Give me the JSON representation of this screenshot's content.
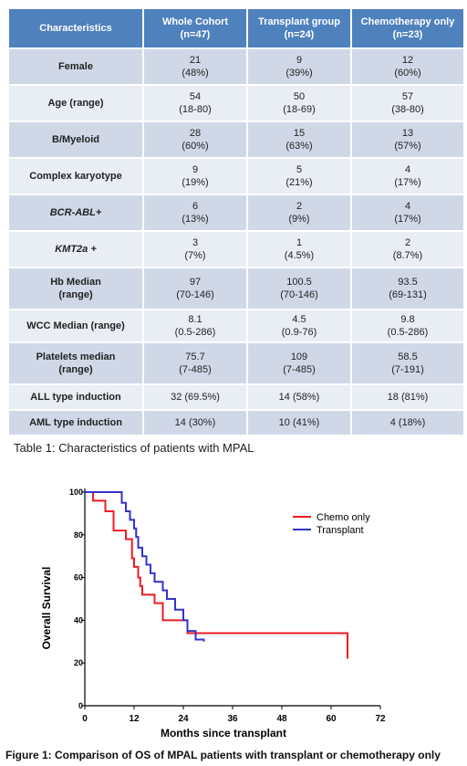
{
  "table": {
    "headers": [
      "Characteristics",
      "Whole Cohort\n(n=47)",
      "Transplant group\n(n=24)",
      "Chemotherapy only\n(n=23)"
    ],
    "rows": [
      {
        "label": "Female",
        "italic": false,
        "cells": [
          [
            "21",
            "(48%)"
          ],
          [
            "9",
            "(39%)"
          ],
          [
            "12",
            "(60%)"
          ]
        ]
      },
      {
        "label": "Age (range)",
        "italic": false,
        "cells": [
          [
            "54",
            "(18-80)"
          ],
          [
            "50",
            "(18-69)"
          ],
          [
            "57",
            "(38-80)"
          ]
        ]
      },
      {
        "label": "B/Myeloid",
        "italic": false,
        "cells": [
          [
            "28",
            "(60%)"
          ],
          [
            "15",
            "(63%)"
          ],
          [
            "13",
            "(57%)"
          ]
        ]
      },
      {
        "label": "Complex karyotype",
        "italic": false,
        "cells": [
          [
            "9",
            "(19%)"
          ],
          [
            "5",
            "(21%)"
          ],
          [
            "4",
            "(17%)"
          ]
        ]
      },
      {
        "label": "BCR-ABL+",
        "italic": true,
        "cells": [
          [
            "6",
            "(13%)"
          ],
          [
            "2",
            "(9%)"
          ],
          [
            "4",
            "(17%)"
          ]
        ]
      },
      {
        "label": "KMT2a +",
        "italic": true,
        "cells": [
          [
            "3",
            "(7%)"
          ],
          [
            "1",
            "(4.5%)"
          ],
          [
            "2",
            "(8.7%)"
          ]
        ]
      },
      {
        "label": "Hb Median\n(range)",
        "italic": false,
        "cells": [
          [
            "97",
            "(70-146)"
          ],
          [
            "100.5",
            "(70-146)"
          ],
          [
            "93.5",
            "(69-131)"
          ]
        ]
      },
      {
        "label": "WCC Median (range)",
        "italic": false,
        "cells": [
          [
            "8.1",
            "(0.5-286)"
          ],
          [
            "4.5",
            "(0.9-76)"
          ],
          [
            "9.8",
            "(0.5-286)"
          ]
        ]
      },
      {
        "label": "Platelets median\n(range)",
        "italic": false,
        "cells": [
          [
            "75.7",
            "(7-485)"
          ],
          [
            "109",
            "(7-485)"
          ],
          [
            "58.5",
            "(7-191)"
          ]
        ]
      },
      {
        "label": "ALL type induction",
        "italic": false,
        "cells": [
          [
            "32 (69.5%)"
          ],
          [
            "14 (58%)"
          ],
          [
            "18 (81%)"
          ]
        ]
      },
      {
        "label": "AML type induction",
        "italic": false,
        "cells": [
          [
            "14 (30%)"
          ],
          [
            "10 (41%)"
          ],
          [
            "4 (18%)"
          ]
        ]
      }
    ]
  },
  "table_caption": "Table 1: Characteristics of patients with MPAL",
  "figure_caption": "Figure 1: Comparison of OS of MPAL patients with transplant or chemotherapy only",
  "chart_data": {
    "type": "line",
    "title": "",
    "xlabel": "Months since transplant",
    "ylabel": "Overall Survival",
    "xlim": [
      0,
      72
    ],
    "ylim": [
      0,
      100
    ],
    "x_ticks": [
      0,
      12,
      24,
      36,
      48,
      60,
      72
    ],
    "y_ticks": [
      0,
      20,
      40,
      60,
      80,
      100
    ],
    "legend_position": "top-right",
    "grid": false,
    "step": true,
    "series": [
      {
        "name": "Chemo only",
        "color": "#ee1c25",
        "x": [
          0,
          2,
          5,
          7,
          10,
          11.5,
          12,
          13,
          13.5,
          14,
          15,
          17,
          19,
          24,
          25,
          64,
          64
        ],
        "y": [
          100,
          96,
          91,
          82,
          78,
          69,
          65,
          60,
          56,
          52,
          52,
          48,
          40,
          40,
          34,
          34,
          22
        ]
      },
      {
        "name": "Transplant",
        "color": "#3333cc",
        "x": [
          0,
          8,
          9,
          10,
          11,
          12,
          12.5,
          13,
          14,
          15,
          16,
          17,
          19,
          20,
          22,
          24,
          25,
          27,
          29
        ],
        "y": [
          100,
          100,
          95,
          91,
          87,
          83,
          79,
          74,
          70,
          66,
          62,
          58,
          54,
          50,
          45,
          40,
          35,
          31,
          30
        ]
      }
    ]
  }
}
